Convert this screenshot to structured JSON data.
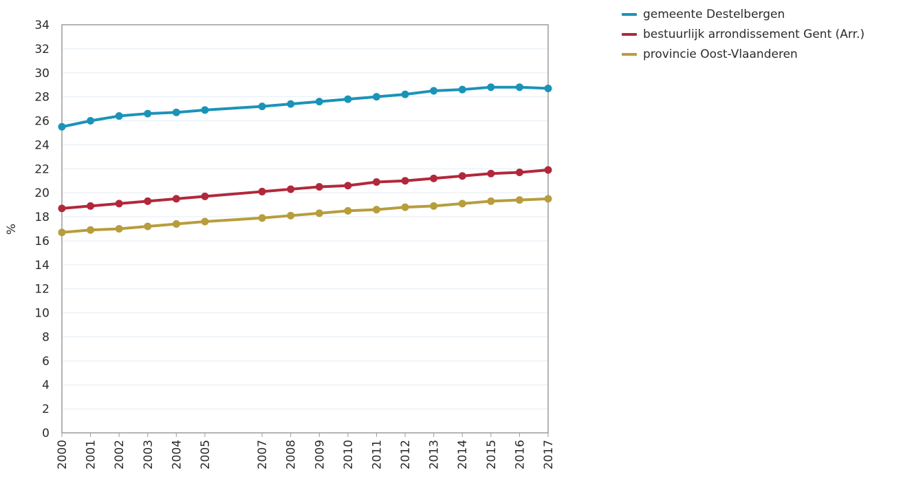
{
  "chart_data": {
    "type": "line",
    "ylabel": "%",
    "xlabel": "",
    "ylim": [
      0,
      34
    ],
    "yticks": [
      0,
      2,
      4,
      6,
      8,
      10,
      12,
      14,
      16,
      18,
      20,
      22,
      24,
      26,
      28,
      30,
      32,
      34
    ],
    "xlim": [
      2000,
      2017
    ],
    "x": [
      2000,
      2001,
      2002,
      2003,
      2004,
      2005,
      2007,
      2008,
      2009,
      2010,
      2011,
      2012,
      2013,
      2014,
      2015,
      2016,
      2017
    ],
    "grid": true,
    "legend_position": "top-right",
    "series": [
      {
        "name": "gemeente Destelbergen",
        "color": "#1a93b8",
        "values": [
          25.5,
          26.0,
          26.4,
          26.6,
          26.7,
          26.9,
          27.2,
          27.4,
          27.6,
          27.8,
          28.0,
          28.2,
          28.5,
          28.6,
          28.8,
          28.8,
          28.7
        ]
      },
      {
        "name": "bestuurlijk arrondissement Gent (Arr.)",
        "color": "#b2283b",
        "values": [
          18.7,
          18.9,
          19.1,
          19.3,
          19.5,
          19.7,
          20.1,
          20.3,
          20.5,
          20.6,
          20.9,
          21.0,
          21.2,
          21.4,
          21.6,
          21.7,
          21.9
        ]
      },
      {
        "name": "provincie Oost-Vlaanderen",
        "color": "#b79d3c",
        "values": [
          16.7,
          16.9,
          17.0,
          17.2,
          17.4,
          17.6,
          17.9,
          18.1,
          18.3,
          18.5,
          18.6,
          18.8,
          18.9,
          19.1,
          19.3,
          19.4,
          19.5
        ]
      }
    ]
  }
}
